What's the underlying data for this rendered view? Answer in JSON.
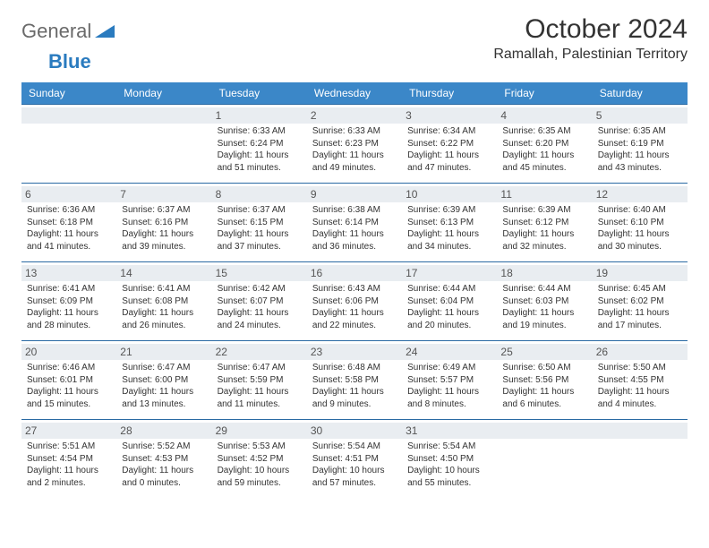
{
  "logo": {
    "word1": "General",
    "word2": "Blue"
  },
  "title": "October 2024",
  "location": "Ramallah, Palestinian Territory",
  "headers": [
    "Sunday",
    "Monday",
    "Tuesday",
    "Wednesday",
    "Thursday",
    "Friday",
    "Saturday"
  ],
  "colors": {
    "headerBg": "#3b87c8",
    "dayBg": "#e9edf1",
    "rule": "#2a6aa3"
  },
  "weeks": [
    [
      null,
      null,
      {
        "n": "1",
        "sr": "6:33 AM",
        "ss": "6:24 PM",
        "dl": "11 hours and 51 minutes."
      },
      {
        "n": "2",
        "sr": "6:33 AM",
        "ss": "6:23 PM",
        "dl": "11 hours and 49 minutes."
      },
      {
        "n": "3",
        "sr": "6:34 AM",
        "ss": "6:22 PM",
        "dl": "11 hours and 47 minutes."
      },
      {
        "n": "4",
        "sr": "6:35 AM",
        "ss": "6:20 PM",
        "dl": "11 hours and 45 minutes."
      },
      {
        "n": "5",
        "sr": "6:35 AM",
        "ss": "6:19 PM",
        "dl": "11 hours and 43 minutes."
      }
    ],
    [
      {
        "n": "6",
        "sr": "6:36 AM",
        "ss": "6:18 PM",
        "dl": "11 hours and 41 minutes."
      },
      {
        "n": "7",
        "sr": "6:37 AM",
        "ss": "6:16 PM",
        "dl": "11 hours and 39 minutes."
      },
      {
        "n": "8",
        "sr": "6:37 AM",
        "ss": "6:15 PM",
        "dl": "11 hours and 37 minutes."
      },
      {
        "n": "9",
        "sr": "6:38 AM",
        "ss": "6:14 PM",
        "dl": "11 hours and 36 minutes."
      },
      {
        "n": "10",
        "sr": "6:39 AM",
        "ss": "6:13 PM",
        "dl": "11 hours and 34 minutes."
      },
      {
        "n": "11",
        "sr": "6:39 AM",
        "ss": "6:12 PM",
        "dl": "11 hours and 32 minutes."
      },
      {
        "n": "12",
        "sr": "6:40 AM",
        "ss": "6:10 PM",
        "dl": "11 hours and 30 minutes."
      }
    ],
    [
      {
        "n": "13",
        "sr": "6:41 AM",
        "ss": "6:09 PM",
        "dl": "11 hours and 28 minutes."
      },
      {
        "n": "14",
        "sr": "6:41 AM",
        "ss": "6:08 PM",
        "dl": "11 hours and 26 minutes."
      },
      {
        "n": "15",
        "sr": "6:42 AM",
        "ss": "6:07 PM",
        "dl": "11 hours and 24 minutes."
      },
      {
        "n": "16",
        "sr": "6:43 AM",
        "ss": "6:06 PM",
        "dl": "11 hours and 22 minutes."
      },
      {
        "n": "17",
        "sr": "6:44 AM",
        "ss": "6:04 PM",
        "dl": "11 hours and 20 minutes."
      },
      {
        "n": "18",
        "sr": "6:44 AM",
        "ss": "6:03 PM",
        "dl": "11 hours and 19 minutes."
      },
      {
        "n": "19",
        "sr": "6:45 AM",
        "ss": "6:02 PM",
        "dl": "11 hours and 17 minutes."
      }
    ],
    [
      {
        "n": "20",
        "sr": "6:46 AM",
        "ss": "6:01 PM",
        "dl": "11 hours and 15 minutes."
      },
      {
        "n": "21",
        "sr": "6:47 AM",
        "ss": "6:00 PM",
        "dl": "11 hours and 13 minutes."
      },
      {
        "n": "22",
        "sr": "6:47 AM",
        "ss": "5:59 PM",
        "dl": "11 hours and 11 minutes."
      },
      {
        "n": "23",
        "sr": "6:48 AM",
        "ss": "5:58 PM",
        "dl": "11 hours and 9 minutes."
      },
      {
        "n": "24",
        "sr": "6:49 AM",
        "ss": "5:57 PM",
        "dl": "11 hours and 8 minutes."
      },
      {
        "n": "25",
        "sr": "6:50 AM",
        "ss": "5:56 PM",
        "dl": "11 hours and 6 minutes."
      },
      {
        "n": "26",
        "sr": "5:50 AM",
        "ss": "4:55 PM",
        "dl": "11 hours and 4 minutes."
      }
    ],
    [
      {
        "n": "27",
        "sr": "5:51 AM",
        "ss": "4:54 PM",
        "dl": "11 hours and 2 minutes."
      },
      {
        "n": "28",
        "sr": "5:52 AM",
        "ss": "4:53 PM",
        "dl": "11 hours and 0 minutes."
      },
      {
        "n": "29",
        "sr": "5:53 AM",
        "ss": "4:52 PM",
        "dl": "10 hours and 59 minutes."
      },
      {
        "n": "30",
        "sr": "5:54 AM",
        "ss": "4:51 PM",
        "dl": "10 hours and 57 minutes."
      },
      {
        "n": "31",
        "sr": "5:54 AM",
        "ss": "4:50 PM",
        "dl": "10 hours and 55 minutes."
      },
      null,
      null
    ]
  ],
  "labels": {
    "sunrise": "Sunrise: ",
    "sunset": "Sunset: ",
    "daylight": "Daylight: "
  }
}
